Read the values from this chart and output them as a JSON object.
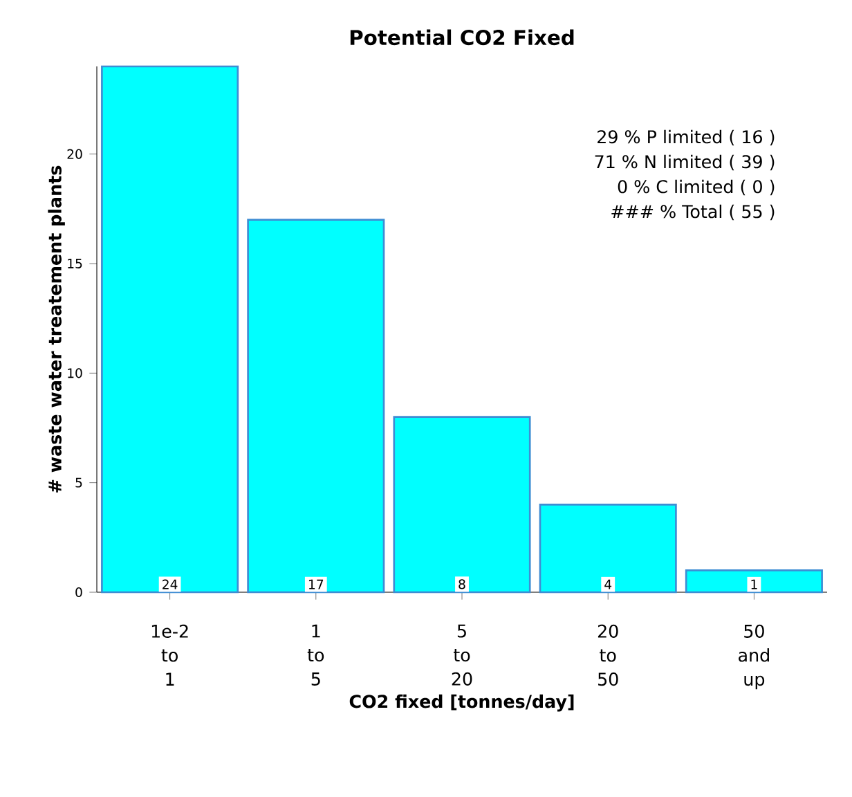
{
  "chart_data": {
    "type": "bar",
    "title": "Potential CO2 Fixed",
    "categories": [
      "1e-2 to 1",
      "1 to 5",
      "5 to 20",
      "20 to 50",
      "50 and up"
    ],
    "values": [
      24,
      17,
      8,
      4,
      1
    ],
    "color": "#00ffff",
    "xlabel": "CO2 fixed  [tonnes/day]",
    "ylabel": "# waste water treatement plants",
    "ylim": [
      0,
      24
    ],
    "yticks": [
      0,
      5,
      10,
      15,
      20
    ],
    "data_labels": true,
    "annotations": [
      "29 %    P limited (  16  )",
      "71 %    N limited (  39  )",
      "0 %    C limited (  0  )",
      "### %       Total    (  55  )"
    ]
  }
}
